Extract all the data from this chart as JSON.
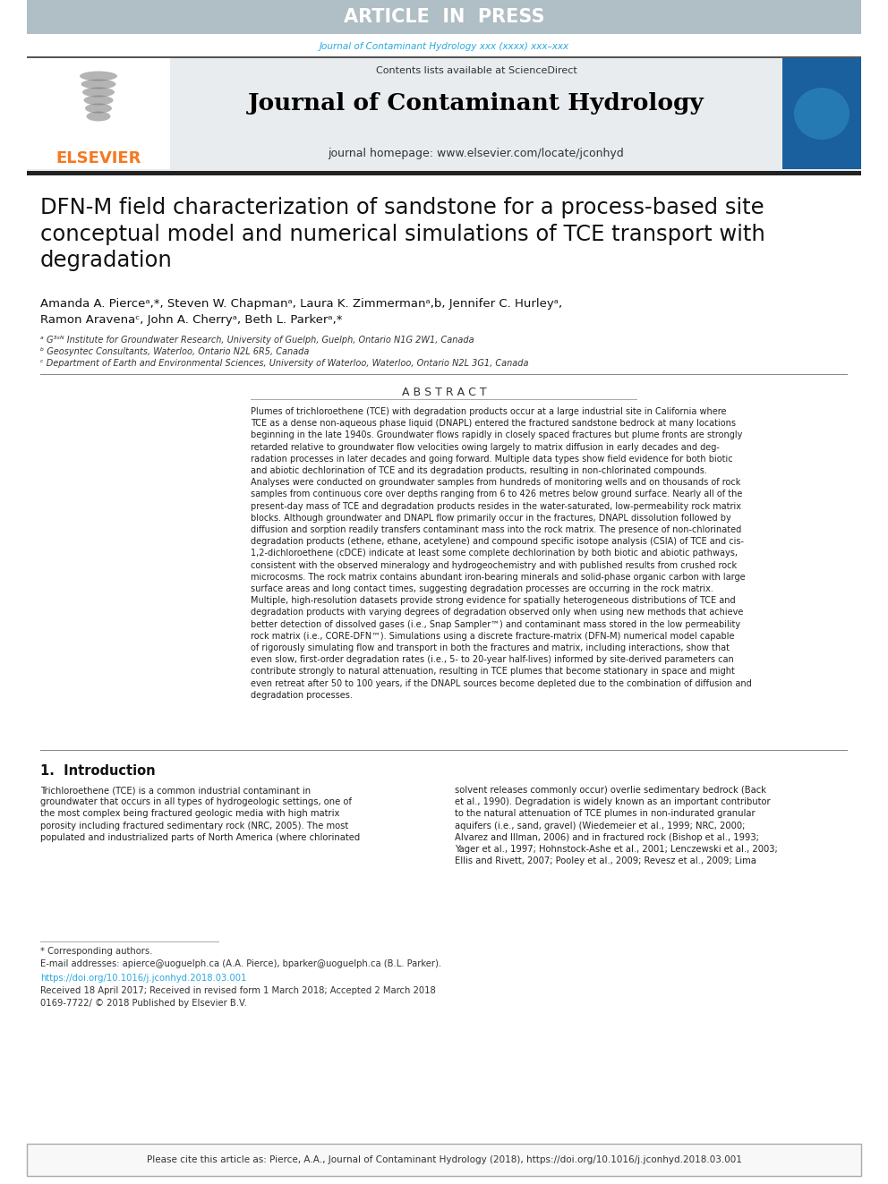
{
  "article_in_press_bg": "#b0bec5",
  "article_in_press_text": "ARTICLE  IN  PRESS",
  "article_in_press_text_color": "#ffffff",
  "journal_ref_text": "Journal of Contaminant Hydrology xxx (xxxx) xxx–xxx",
  "journal_ref_color": "#29a8e0",
  "header_bg": "#e8ecee",
  "contents_text": "Contents lists available at ",
  "sciencedirect_text": "ScienceDirect",
  "sciencedirect_color": "#f47920",
  "journal_title": "Journal of Contaminant Hydrology",
  "journal_title_color": "#000000",
  "journal_homepage_label": "journal homepage: ",
  "journal_homepage_url": "www.elsevier.com/locate/jconhyd",
  "journal_homepage_url_color": "#29a8e0",
  "elsevier_color": "#f47920",
  "article_title": "DFN-M field characterization of sandstone for a process-based site\nconceptual model and numerical simulations of TCE transport with\ndegradation",
  "authors_line1": "Amanda A. Pierceᵃ,*, Steven W. Chapmanᵃ, Laura K. Zimmermanᵃ,b, Jennifer C. Hurleyᵃ,",
  "authors_line2": "Ramon Aravenaᶜ, John A. Cherryᵃ, Beth L. Parkerᵃ,*",
  "affil_a": "ᵃ G³ˢᴺ Institute for Groundwater Research, University of Guelph, Guelph, Ontario N1G 2W1, Canada",
  "affil_b": "ᵇ Geosyntec Consultants, Waterloo, Ontario N2L 6R5, Canada",
  "affil_c": "ᶜ Department of Earth and Environmental Sciences, University of Waterloo, Waterloo, Ontario N2L 3G1, Canada",
  "abstract_title": "A B S T R A C T",
  "abstract_text": "Plumes of trichloroethene (TCE) with degradation products occur at a large industrial site in California where\nTCE as a dense non-aqueous phase liquid (DNAPL) entered the fractured sandstone bedrock at many locations\nbeginning in the late 1940s. Groundwater flows rapidly in closely spaced fractures but plume fronts are strongly\nretarded relative to groundwater flow velocities owing largely to matrix diffusion in early decades and deg-\nradation processes in later decades and going forward. Multiple data types show field evidence for both biotic\nand abiotic dechlorination of TCE and its degradation products, resulting in non-chlorinated compounds.\nAnalyses were conducted on groundwater samples from hundreds of monitoring wells and on thousands of rock\nsamples from continuous core over depths ranging from 6 to 426 metres below ground surface. Nearly all of the\npresent-day mass of TCE and degradation products resides in the water-saturated, low-permeability rock matrix\nblocks. Although groundwater and DNAPL flow primarily occur in the fractures, DNAPL dissolution followed by\ndiffusion and sorption readily transfers contaminant mass into the rock matrix. The presence of non-chlorinated\ndegradation products (ethene, ethane, acetylene) and compound specific isotope analysis (CSIA) of TCE and cis-\n1,2-dichloroethene (cDCE) indicate at least some complete dechlorination by both biotic and abiotic pathways,\nconsistent with the observed mineralogy and hydrogeochemistry and with published results from crushed rock\nmicrocosms. The rock matrix contains abundant iron-bearing minerals and solid-phase organic carbon with large\nsurface areas and long contact times, suggesting degradation processes are occurring in the rock matrix.\nMultiple, high-resolution datasets provide strong evidence for spatially heterogeneous distributions of TCE and\ndegradation products with varying degrees of degradation observed only when using new methods that achieve\nbetter detection of dissolved gases (i.e., Snap Sampler™) and contaminant mass stored in the low permeability\nrock matrix (i.e., CORE-DFN™). Simulations using a discrete fracture-matrix (DFN-M) numerical model capable\nof rigorously simulating flow and transport in both the fractures and matrix, including interactions, show that\neven slow, first-order degradation rates (i.e., 5- to 20-year half-lives) informed by site-derived parameters can\ncontribute strongly to natural attenuation, resulting in TCE plumes that become stationary in space and might\neven retreat after 50 to 100 years, if the DNAPL sources become depleted due to the combination of diffusion and\ndegradation processes.",
  "section1_title": "1.  Introduction",
  "intro_col1": "Trichloroethene (TCE) is a common industrial contaminant in\ngroundwater that occurs in all types of hydrogeologic settings, one of\nthe most complex being fractured geologic media with high matrix\nporosity including fractured sedimentary rock (NRC, 2005). The most\npopulated and industrialized parts of North America (where chlorinated",
  "intro_col2": "solvent releases commonly occur) overlie sedimentary bedrock (Back\net al., 1990). Degradation is widely known as an important contributor\nto the natural attenuation of TCE plumes in non-indurated granular\naquifers (i.e., sand, gravel) (Wiedemeier et al., 1999; NRC, 2000;\nAlvarez and Illman, 2006) and in fractured rock (Bishop et al., 1993;\nYager et al., 1997; Hohnstock-Ashe et al., 2001; Lenczewski et al., 2003;\nEllis and Rivett, 2007; Pooley et al., 2009; Revesz et al., 2009; Lima",
  "footnote_corresponding": "* Corresponding authors.",
  "footnote_email": "E-mail addresses: apierce@uoguelph.ca (A.A. Pierce), bparker@uoguelph.ca (B.L. Parker).",
  "doi_text": "https://doi.org/10.1016/j.jconhyd.2018.03.001",
  "doi_color": "#29a8e0",
  "received_text": "Received 18 April 2017; Received in revised form 1 March 2018; Accepted 2 March 2018",
  "issn_text": "0169-7722/ © 2018 Published by Elsevier B.V.",
  "cite_box_text": "Please cite this article as: Pierce, A.A., Journal of Contaminant Hydrology (2018), https://doi.org/10.1016/j.jconhyd.2018.03.001",
  "cite_box_border": "#aaaaaa",
  "page_bg": "#ffffff",
  "body_text_color": "#222222",
  "link_color": "#29a8e0"
}
